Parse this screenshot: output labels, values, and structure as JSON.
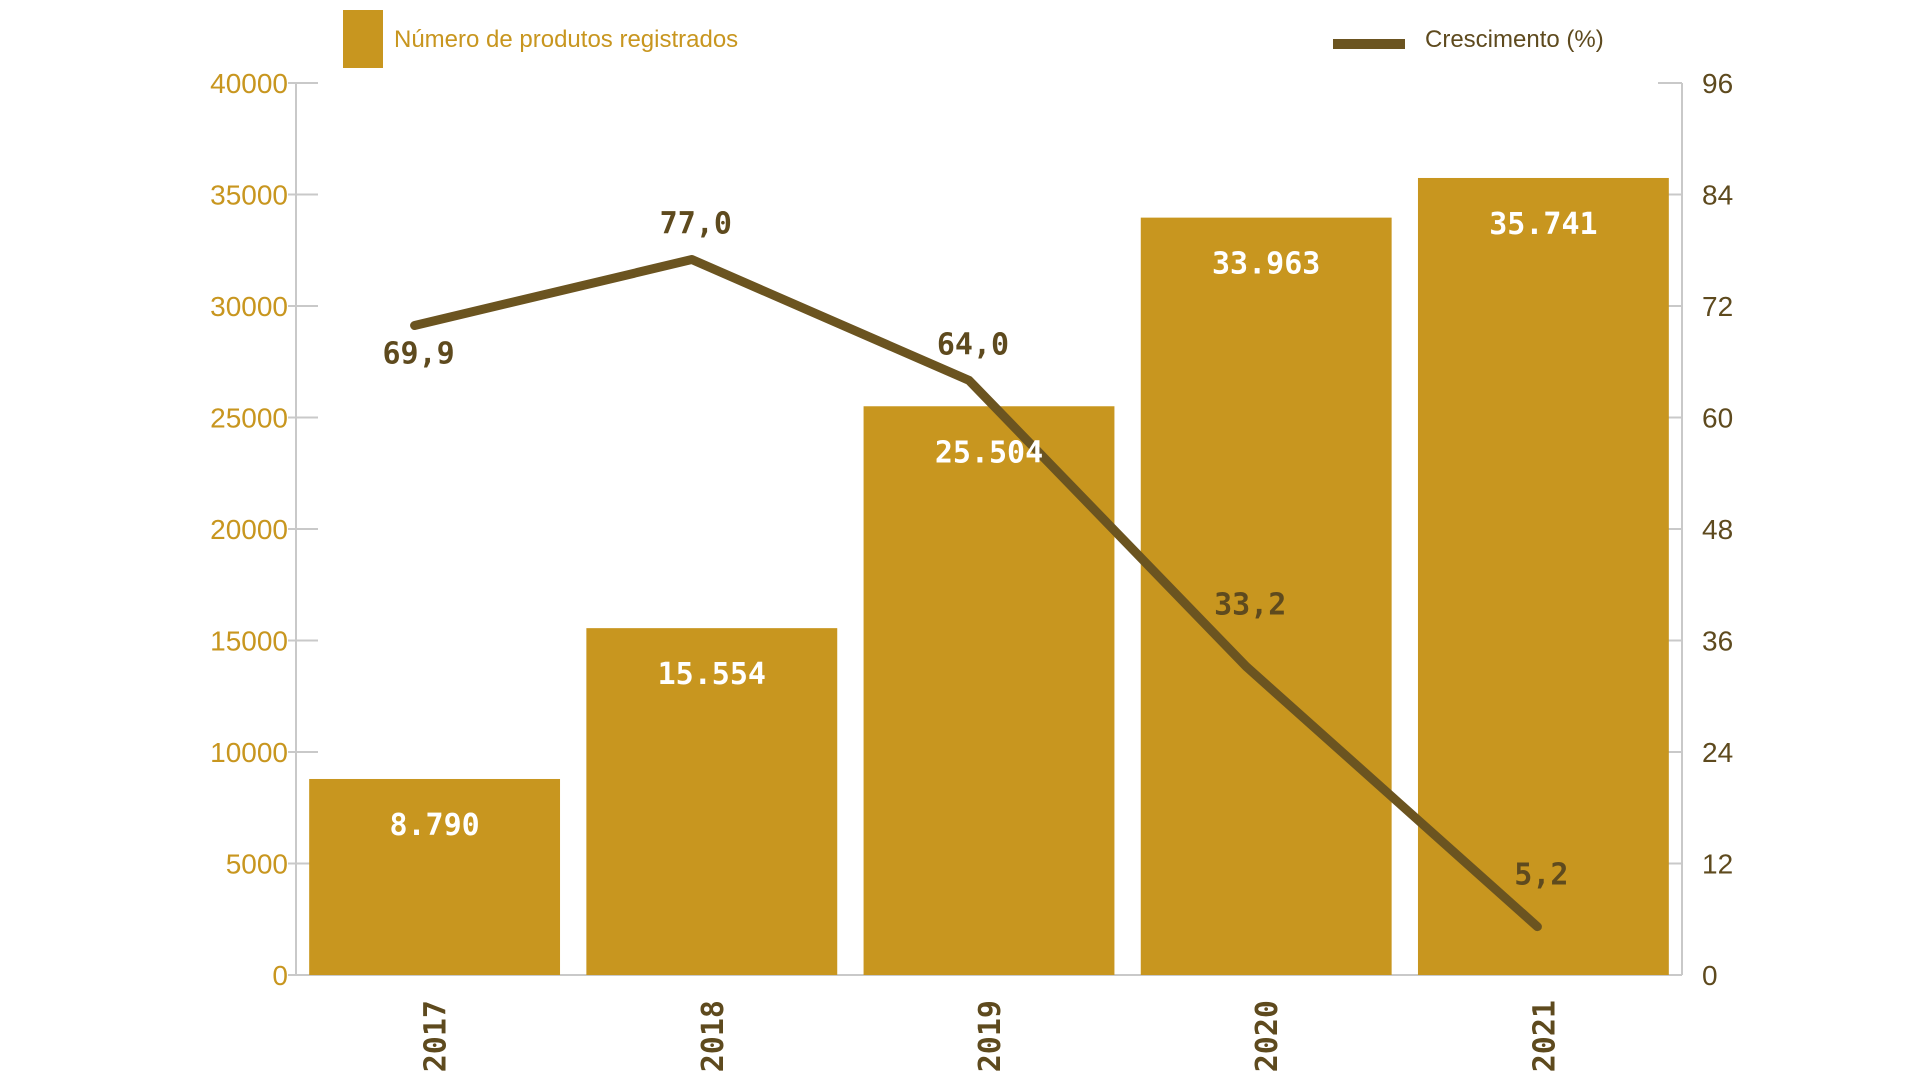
{
  "chart_data": {
    "type": "bar",
    "categories": [
      "2017",
      "2018",
      "2019",
      "2020",
      "2021"
    ],
    "series": [
      {
        "name": "Número de produtos registrados",
        "kind": "bar",
        "axis": "left",
        "values": [
          8790,
          15554,
          25504,
          33963,
          35741
        ],
        "value_labels": [
          "8.790",
          "15.554",
          "25.504",
          "33.963",
          "35.741"
        ]
      },
      {
        "name": "Crescimento (%)",
        "kind": "line",
        "axis": "right",
        "values": [
          69.9,
          77.0,
          64.0,
          33.2,
          5.2
        ],
        "value_labels": [
          "69,9",
          "77,0",
          "64,0",
          "33,2",
          "5,2"
        ]
      }
    ],
    "left_axis": {
      "ylim": [
        0,
        40000
      ],
      "ticks": [
        "0",
        "5000",
        "10000",
        "15000",
        "20000",
        "25000",
        "30000",
        "35000",
        "40000"
      ]
    },
    "right_axis": {
      "ylim": [
        0,
        96
      ],
      "ticks": [
        "0",
        "12",
        "24",
        "36",
        "48",
        "60",
        "72",
        "84",
        "96"
      ]
    },
    "legend_placement": "top",
    "grid": false,
    "colors": {
      "bar": "#c8961f",
      "line": "#6b5420",
      "left_axis_text": "#c8961f",
      "right_axis_text": "#5e4a1e",
      "axis_line": "#c9c9c9"
    }
  }
}
